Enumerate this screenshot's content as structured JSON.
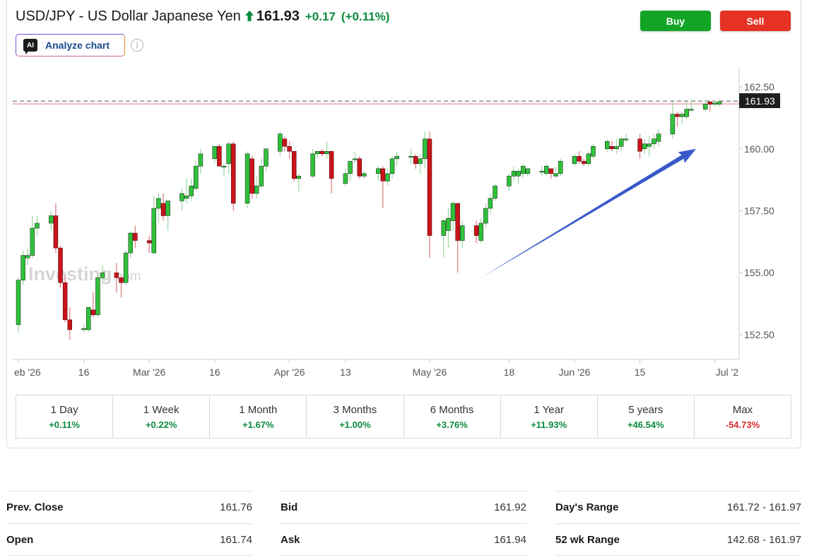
{
  "header": {
    "title": "USD/JPY - US Dollar Japanese Yen",
    "last_price": "161.93",
    "change": "+0.17",
    "change_pct": "(+0.11%)",
    "arrow_icon": "up-arrow-icon",
    "up_color": "#0b8a3e",
    "down_color": "#d62b2b"
  },
  "toolbar": {
    "ai_badge": "AI",
    "analyze_label": "Analyze chart",
    "info_icon": "i",
    "buy_label": "Buy",
    "sell_label": "Sell",
    "buy_color": "#12a525",
    "sell_color": "#e53224"
  },
  "chart_data": {
    "type": "candlestick",
    "title": "",
    "xlabel": "",
    "ylabel": "",
    "ylim": [
      151.5,
      163.3
    ],
    "y_ticks": [
      162.5,
      160.0,
      157.5,
      155.0,
      152.5
    ],
    "y_tick_labels": [
      "162.50",
      "160.00",
      "157.50",
      "155.00",
      "152.50"
    ],
    "x_tick_labels": [
      "eb '26",
      "16",
      "Mar '26",
      "16",
      "Apr '26",
      "13",
      "May '26",
      "18",
      "Jun '26",
      "15",
      "Jul '2"
    ],
    "x_tick_dates": [
      "2026-02-02",
      "2026-02-16",
      "2026-03-02",
      "2026-03-16",
      "2026-04-01",
      "2026-04-13",
      "2026-05-01",
      "2026-05-18",
      "2026-06-01",
      "2026-06-15",
      "2026-07-01"
    ],
    "last_price": 161.93,
    "last_price_label": "161.93",
    "watermark": "Investing",
    "watermark_suffix": ".com",
    "up_color": "#2fc13a",
    "down_color": "#c8141a",
    "arrow_color": "#3759c9",
    "trend_arrow": {
      "from": [
        "2026-05-12",
        154.8
      ],
      "to": [
        "2026-06-27",
        160.0
      ]
    },
    "candles": [
      {
        "date": "2026-02-02",
        "o": 152.9,
        "h": 154.8,
        "l": 152.6,
        "c": 154.7
      },
      {
        "date": "2026-02-03",
        "o": 154.7,
        "h": 155.9,
        "l": 154.5,
        "c": 155.7
      },
      {
        "date": "2026-02-04",
        "o": 155.6,
        "h": 156.0,
        "l": 155.3,
        "c": 155.7
      },
      {
        "date": "2026-02-05",
        "o": 155.7,
        "h": 157.3,
        "l": 155.6,
        "c": 156.8
      },
      {
        "date": "2026-02-06",
        "o": 156.8,
        "h": 157.3,
        "l": 156.5,
        "c": 157.0
      },
      {
        "date": "2026-02-09",
        "o": 157.0,
        "h": 157.5,
        "l": 156.7,
        "c": 157.3
      },
      {
        "date": "2026-02-10",
        "o": 157.3,
        "h": 157.8,
        "l": 155.8,
        "c": 156.0
      },
      {
        "date": "2026-02-11",
        "o": 156.0,
        "h": 156.1,
        "l": 154.4,
        "c": 154.6
      },
      {
        "date": "2026-02-12",
        "o": 154.6,
        "h": 154.9,
        "l": 153.0,
        "c": 153.1
      },
      {
        "date": "2026-02-13",
        "o": 153.1,
        "h": 153.6,
        "l": 152.3,
        "c": 152.7
      },
      {
        "date": "2026-02-16",
        "o": 152.7,
        "h": 152.9,
        "l": 152.6,
        "c": 152.75
      },
      {
        "date": "2026-02-17",
        "o": 152.7,
        "h": 153.6,
        "l": 152.6,
        "c": 153.6
      },
      {
        "date": "2026-02-18",
        "o": 153.5,
        "h": 154.2,
        "l": 153.2,
        "c": 153.3
      },
      {
        "date": "2026-02-19",
        "o": 153.3,
        "h": 154.9,
        "l": 153.2,
        "c": 154.8
      },
      {
        "date": "2026-02-20",
        "o": 154.8,
        "h": 155.3,
        "l": 154.6,
        "c": 155.0
      },
      {
        "date": "2026-02-23",
        "o": 155.0,
        "h": 155.4,
        "l": 154.2,
        "c": 154.8
      },
      {
        "date": "2026-02-24",
        "o": 154.8,
        "h": 154.9,
        "l": 154.0,
        "c": 154.6
      },
      {
        "date": "2026-02-25",
        "o": 154.6,
        "h": 155.9,
        "l": 154.5,
        "c": 155.8
      },
      {
        "date": "2026-02-26",
        "o": 155.8,
        "h": 156.7,
        "l": 155.6,
        "c": 156.6
      },
      {
        "date": "2026-02-27",
        "o": 156.6,
        "h": 156.9,
        "l": 156.0,
        "c": 156.3
      },
      {
        "date": "2026-03-02",
        "o": 156.3,
        "h": 156.5,
        "l": 155.8,
        "c": 156.2
      },
      {
        "date": "2026-03-03",
        "o": 155.8,
        "h": 158.1,
        "l": 155.8,
        "c": 157.6
      },
      {
        "date": "2026-03-04",
        "o": 157.6,
        "h": 158.2,
        "l": 157.0,
        "c": 158.0
      },
      {
        "date": "2026-03-05",
        "o": 157.8,
        "h": 158.2,
        "l": 157.1,
        "c": 157.3
      },
      {
        "date": "2026-03-06",
        "o": 157.3,
        "h": 157.9,
        "l": 156.7,
        "c": 157.9
      },
      {
        "date": "2026-03-09",
        "o": 157.9,
        "h": 158.4,
        "l": 157.5,
        "c": 158.2
      },
      {
        "date": "2026-03-10",
        "o": 158.0,
        "h": 158.8,
        "l": 157.8,
        "c": 158.1
      },
      {
        "date": "2026-03-11",
        "o": 158.1,
        "h": 158.8,
        "l": 157.9,
        "c": 158.5
      },
      {
        "date": "2026-03-12",
        "o": 158.4,
        "h": 159.5,
        "l": 158.3,
        "c": 159.3
      },
      {
        "date": "2026-03-13",
        "o": 159.3,
        "h": 160.0,
        "l": 159.0,
        "c": 159.8
      },
      {
        "date": "2026-03-16",
        "o": 159.6,
        "h": 160.1,
        "l": 159.4,
        "c": 160.1
      },
      {
        "date": "2026-03-17",
        "o": 160.1,
        "h": 160.2,
        "l": 159.3,
        "c": 159.3
      },
      {
        "date": "2026-03-18",
        "o": 159.3,
        "h": 159.4,
        "l": 158.9,
        "c": 159.3
      },
      {
        "date": "2026-03-19",
        "o": 159.4,
        "h": 160.3,
        "l": 159.0,
        "c": 160.2
      },
      {
        "date": "2026-03-20",
        "o": 160.2,
        "h": 160.3,
        "l": 157.5,
        "c": 157.8
      },
      {
        "date": "2026-03-23",
        "o": 157.8,
        "h": 159.9,
        "l": 157.6,
        "c": 159.8
      },
      {
        "date": "2026-03-24",
        "o": 159.6,
        "h": 159.7,
        "l": 158.0,
        "c": 158.2
      },
      {
        "date": "2026-03-25",
        "o": 158.2,
        "h": 158.9,
        "l": 158.0,
        "c": 158.5
      },
      {
        "date": "2026-03-26",
        "o": 158.5,
        "h": 159.6,
        "l": 158.4,
        "c": 159.3
      },
      {
        "date": "2026-03-27",
        "o": 159.3,
        "h": 160.0,
        "l": 159.1,
        "c": 160.0
      },
      {
        "date": "2026-03-30",
        "o": 159.9,
        "h": 160.7,
        "l": 159.7,
        "c": 160.6
      },
      {
        "date": "2026-03-31",
        "o": 160.4,
        "h": 160.5,
        "l": 159.9,
        "c": 160.1
      },
      {
        "date": "2026-04-01",
        "o": 160.1,
        "h": 160.3,
        "l": 159.6,
        "c": 159.9
      },
      {
        "date": "2026-04-02",
        "o": 159.9,
        "h": 159.9,
        "l": 158.7,
        "c": 158.8
      },
      {
        "date": "2026-04-03",
        "o": 158.8,
        "h": 159.0,
        "l": 158.3,
        "c": 158.9
      },
      {
        "date": "2026-04-06",
        "o": 158.9,
        "h": 160.0,
        "l": 158.8,
        "c": 159.8
      },
      {
        "date": "2026-04-07",
        "o": 159.8,
        "h": 159.9,
        "l": 159.6,
        "c": 159.9
      },
      {
        "date": "2026-04-08",
        "o": 159.9,
        "h": 160.0,
        "l": 159.7,
        "c": 159.8
      },
      {
        "date": "2026-04-09",
        "o": 159.8,
        "h": 160.3,
        "l": 159.6,
        "c": 159.9
      },
      {
        "date": "2026-04-10",
        "o": 159.9,
        "h": 159.9,
        "l": 158.2,
        "c": 158.8
      },
      {
        "date": "2026-04-13",
        "o": 158.6,
        "h": 159.2,
        "l": 158.5,
        "c": 159.0
      },
      {
        "date": "2026-04-14",
        "o": 159.0,
        "h": 159.5,
        "l": 158.7,
        "c": 159.5
      },
      {
        "date": "2026-04-15",
        "o": 159.6,
        "h": 159.9,
        "l": 159.4,
        "c": 159.6
      },
      {
        "date": "2026-04-16",
        "o": 159.6,
        "h": 159.7,
        "l": 158.8,
        "c": 158.9
      },
      {
        "date": "2026-04-17",
        "o": 158.9,
        "h": 159.1,
        "l": 158.8,
        "c": 159.0
      },
      {
        "date": "2026-04-20",
        "o": 159.0,
        "h": 159.3,
        "l": 158.7,
        "c": 159.2
      },
      {
        "date": "2026-04-21",
        "o": 159.2,
        "h": 159.3,
        "l": 157.6,
        "c": 158.7
      },
      {
        "date": "2026-04-22",
        "o": 158.7,
        "h": 159.2,
        "l": 158.5,
        "c": 159.0
      },
      {
        "date": "2026-04-23",
        "o": 159.0,
        "h": 159.7,
        "l": 158.8,
        "c": 159.6
      },
      {
        "date": "2026-04-24",
        "o": 159.6,
        "h": 159.9,
        "l": 159.3,
        "c": 159.7
      },
      {
        "date": "2026-04-27",
        "o": 159.7,
        "h": 160.0,
        "l": 159.4,
        "c": 159.7
      },
      {
        "date": "2026-04-28",
        "o": 159.7,
        "h": 159.8,
        "l": 159.2,
        "c": 159.4
      },
      {
        "date": "2026-04-29",
        "o": 159.4,
        "h": 159.8,
        "l": 159.0,
        "c": 159.6
      },
      {
        "date": "2026-04-30",
        "o": 159.6,
        "h": 160.7,
        "l": 159.2,
        "c": 160.4
      },
      {
        "date": "2026-05-01",
        "o": 160.4,
        "h": 160.7,
        "l": 155.6,
        "c": 156.5
      },
      {
        "date": "2026-05-04",
        "o": 156.5,
        "h": 157.2,
        "l": 155.6,
        "c": 157.1
      },
      {
        "date": "2026-05-05",
        "o": 156.7,
        "h": 157.6,
        "l": 156.0,
        "c": 157.2
      },
      {
        "date": "2026-05-06",
        "o": 157.1,
        "h": 157.9,
        "l": 156.7,
        "c": 157.8
      },
      {
        "date": "2026-05-07",
        "o": 157.8,
        "h": 157.8,
        "l": 155.0,
        "c": 156.3
      },
      {
        "date": "2026-05-08",
        "o": 156.3,
        "h": 157.1,
        "l": 156.0,
        "c": 156.9
      },
      {
        "date": "2026-05-11",
        "o": 156.9,
        "h": 157.1,
        "l": 156.2,
        "c": 156.5
      },
      {
        "date": "2026-05-12",
        "o": 156.3,
        "h": 157.2,
        "l": 156.2,
        "c": 157.0
      },
      {
        "date": "2026-05-13",
        "o": 157.0,
        "h": 157.8,
        "l": 156.8,
        "c": 157.6
      },
      {
        "date": "2026-05-14",
        "o": 157.6,
        "h": 158.2,
        "l": 157.4,
        "c": 158.0
      },
      {
        "date": "2026-05-15",
        "o": 158.0,
        "h": 158.6,
        "l": 157.9,
        "c": 158.5
      },
      {
        "date": "2026-05-18",
        "o": 158.5,
        "h": 159.0,
        "l": 158.3,
        "c": 158.9
      },
      {
        "date": "2026-05-19",
        "o": 158.9,
        "h": 159.3,
        "l": 158.7,
        "c": 159.1
      },
      {
        "date": "2026-05-20",
        "o": 158.9,
        "h": 159.2,
        "l": 158.6,
        "c": 159.1
      },
      {
        "date": "2026-05-21",
        "o": 159.0,
        "h": 159.4,
        "l": 158.8,
        "c": 159.3
      },
      {
        "date": "2026-05-22",
        "o": 159.0,
        "h": 159.2,
        "l": 158.9,
        "c": 159.2
      },
      {
        "date": "2026-05-25",
        "o": 159.1,
        "h": 159.3,
        "l": 158.9,
        "c": 159.1
      },
      {
        "date": "2026-05-26",
        "o": 159.0,
        "h": 159.4,
        "l": 158.9,
        "c": 159.3
      },
      {
        "date": "2026-05-27",
        "o": 159.2,
        "h": 159.2,
        "l": 158.8,
        "c": 159.0
      },
      {
        "date": "2026-05-28",
        "o": 158.9,
        "h": 159.3,
        "l": 158.8,
        "c": 159.0
      },
      {
        "date": "2026-05-29",
        "o": 159.0,
        "h": 159.6,
        "l": 158.9,
        "c": 159.5
      },
      {
        "date": "2026-06-01",
        "o": 159.4,
        "h": 159.8,
        "l": 159.3,
        "c": 159.7
      },
      {
        "date": "2026-06-02",
        "o": 159.7,
        "h": 159.9,
        "l": 159.4,
        "c": 159.5
      },
      {
        "date": "2026-06-03",
        "o": 159.5,
        "h": 159.6,
        "l": 159.3,
        "c": 159.4
      },
      {
        "date": "2026-06-04",
        "o": 159.4,
        "h": 159.9,
        "l": 159.3,
        "c": 159.8
      },
      {
        "date": "2026-06-05",
        "o": 159.7,
        "h": 160.2,
        "l": 159.6,
        "c": 160.1
      },
      {
        "date": "2026-06-08",
        "o": 160.0,
        "h": 160.4,
        "l": 159.9,
        "c": 160.3
      },
      {
        "date": "2026-06-09",
        "o": 160.1,
        "h": 160.3,
        "l": 159.9,
        "c": 160.0
      },
      {
        "date": "2026-06-10",
        "o": 160.0,
        "h": 160.4,
        "l": 159.8,
        "c": 160.1
      },
      {
        "date": "2026-06-11",
        "o": 160.1,
        "h": 160.5,
        "l": 159.9,
        "c": 160.4
      },
      {
        "date": "2026-06-12",
        "o": 160.4,
        "h": 160.6,
        "l": 160.3,
        "c": 160.4
      },
      {
        "date": "2026-06-15",
        "o": 160.4,
        "h": 160.6,
        "l": 159.6,
        "c": 159.9
      },
      {
        "date": "2026-06-16",
        "o": 160.0,
        "h": 160.4,
        "l": 159.8,
        "c": 160.2
      },
      {
        "date": "2026-06-17",
        "o": 160.1,
        "h": 160.5,
        "l": 159.7,
        "c": 160.2
      },
      {
        "date": "2026-06-18",
        "o": 160.2,
        "h": 160.6,
        "l": 160.0,
        "c": 160.4
      },
      {
        "date": "2026-06-19",
        "o": 160.3,
        "h": 160.8,
        "l": 160.1,
        "c": 160.6
      },
      {
        "date": "2026-06-22",
        "o": 160.6,
        "h": 161.9,
        "l": 160.4,
        "c": 161.4
      },
      {
        "date": "2026-06-23",
        "o": 161.4,
        "h": 161.5,
        "l": 160.9,
        "c": 161.3
      },
      {
        "date": "2026-06-24",
        "o": 161.3,
        "h": 161.5,
        "l": 161.0,
        "c": 161.4
      },
      {
        "date": "2026-06-25",
        "o": 161.3,
        "h": 161.9,
        "l": 161.2,
        "c": 161.6
      },
      {
        "date": "2026-06-26",
        "o": 161.6,
        "h": 162.0,
        "l": 161.5,
        "c": 161.6
      },
      {
        "date": "2026-06-29",
        "o": 161.6,
        "h": 162.0,
        "l": 161.5,
        "c": 161.8
      },
      {
        "date": "2026-06-30",
        "o": 161.9,
        "h": 161.9,
        "l": 161.5,
        "c": 161.8
      },
      {
        "date": "2026-07-01",
        "o": 161.8,
        "h": 161.95,
        "l": 161.7,
        "c": 161.85
      },
      {
        "date": "2026-07-02",
        "o": 161.8,
        "h": 162.0,
        "l": 161.7,
        "c": 161.9
      }
    ]
  },
  "periods": [
    {
      "label": "1 Day",
      "change": "+0.11%",
      "dir": "up"
    },
    {
      "label": "1 Week",
      "change": "+0.22%",
      "dir": "up"
    },
    {
      "label": "1 Month",
      "change": "+1.67%",
      "dir": "up"
    },
    {
      "label": "3 Months",
      "change": "+1.00%",
      "dir": "up"
    },
    {
      "label": "6 Months",
      "change": "+3.76%",
      "dir": "up"
    },
    {
      "label": "1 Year",
      "change": "+11.93%",
      "dir": "up"
    },
    {
      "label": "5 years",
      "change": "+46.54%",
      "dir": "up"
    },
    {
      "label": "Max",
      "change": "-54.73%",
      "dir": "down"
    }
  ],
  "stats": {
    "col1": [
      {
        "label": "Prev. Close",
        "value": "161.76"
      },
      {
        "label": "Open",
        "value": "161.74"
      }
    ],
    "col2": [
      {
        "label": "Bid",
        "value": "161.92"
      },
      {
        "label": "Ask",
        "value": "161.94"
      }
    ],
    "col3": [
      {
        "label": "Day's Range",
        "value": "161.72 - 161.97"
      },
      {
        "label": "52 wk Range",
        "value": "142.68 - 161.97"
      }
    ]
  }
}
